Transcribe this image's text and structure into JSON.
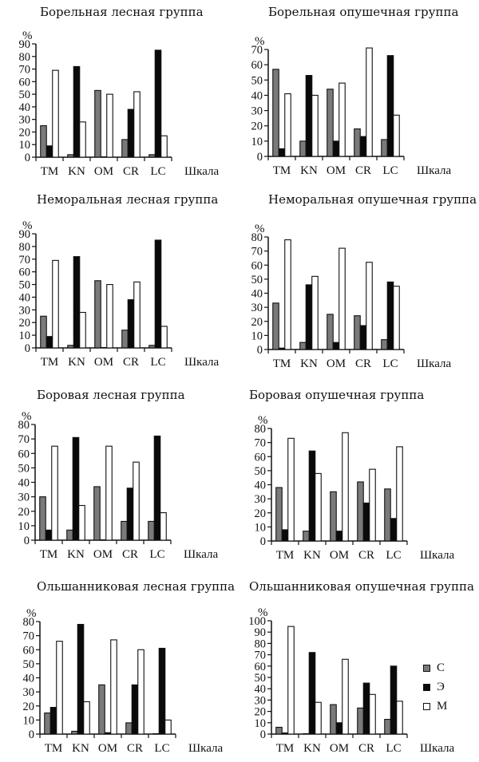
{
  "colors": {
    "С": "#7a7a7a",
    "Э": "#0a0a0a",
    "М": "#ffffff",
    "axis": "#111111"
  },
  "chart_data": [
    {
      "type": "bar",
      "title": "Борельная лесная группа",
      "ylabel": "%",
      "xlabel": "Шкала",
      "categories": [
        "TM",
        "KN",
        "OM",
        "CR",
        "LC"
      ],
      "ylim": [
        0,
        90
      ],
      "yticks": [
        0,
        10,
        20,
        30,
        40,
        50,
        60,
        70,
        80,
        90
      ],
      "series": [
        {
          "name": "С",
          "values": [
            25,
            2,
            53,
            14,
            2
          ]
        },
        {
          "name": "Э",
          "values": [
            9,
            72,
            0,
            38,
            85
          ]
        },
        {
          "name": "М",
          "values": [
            69,
            28,
            50,
            52,
            17
          ]
        }
      ]
    },
    {
      "type": "bar",
      "title": "Борельная опушечная группа",
      "ylabel": "%",
      "xlabel": "Шкала",
      "categories": [
        "TM",
        "KN",
        "OM",
        "CR",
        "LC"
      ],
      "ylim": [
        0,
        70
      ],
      "yticks": [
        0,
        10,
        20,
        30,
        40,
        50,
        60,
        70
      ],
      "series": [
        {
          "name": "С",
          "values": [
            57,
            10,
            44,
            18,
            11
          ]
        },
        {
          "name": "Э",
          "values": [
            5,
            53,
            10,
            13,
            66
          ]
        },
        {
          "name": "М",
          "values": [
            41,
            40,
            48,
            71,
            27
          ]
        }
      ]
    },
    {
      "type": "bar",
      "title": "Неморальная лесная группа",
      "ylabel": "%",
      "xlabel": "Шкала",
      "categories": [
        "TM",
        "KN",
        "OM",
        "CR",
        "LC"
      ],
      "ylim": [
        0,
        90
      ],
      "yticks": [
        0,
        10,
        20,
        30,
        40,
        50,
        60,
        70,
        80,
        90
      ],
      "series": [
        {
          "name": "С",
          "values": [
            25,
            2,
            53,
            14,
            2
          ]
        },
        {
          "name": "Э",
          "values": [
            9,
            72,
            0,
            38,
            85
          ]
        },
        {
          "name": "М",
          "values": [
            69,
            28,
            50,
            52,
            17
          ]
        }
      ]
    },
    {
      "type": "bar",
      "title": "Неморальная опушечная группа",
      "ylabel": "%",
      "xlabel": "Шкала",
      "categories": [
        "TM",
        "KN",
        "OM",
        "CR",
        "LC"
      ],
      "ylim": [
        0,
        80
      ],
      "yticks": [
        0,
        10,
        20,
        30,
        40,
        50,
        60,
        70,
        80
      ],
      "series": [
        {
          "name": "С",
          "values": [
            33,
            5,
            25,
            24,
            7
          ]
        },
        {
          "name": "Э",
          "values": [
            1,
            46,
            5,
            17,
            48
          ]
        },
        {
          "name": "М",
          "values": [
            78,
            52,
            72,
            62,
            45
          ]
        }
      ]
    },
    {
      "type": "bar",
      "title": "Боровая лесная группа",
      "ylabel": "%",
      "xlabel": "Шкала",
      "categories": [
        "TM",
        "KN",
        "OM",
        "CR",
        "LC"
      ],
      "ylim": [
        0,
        80
      ],
      "yticks": [
        0,
        10,
        20,
        30,
        40,
        50,
        60,
        70,
        80
      ],
      "series": [
        {
          "name": "С",
          "values": [
            30,
            7,
            37,
            13,
            13
          ]
        },
        {
          "name": "Э",
          "values": [
            7,
            71,
            0,
            36,
            72
          ]
        },
        {
          "name": "М",
          "values": [
            65,
            24,
            65,
            54,
            19
          ]
        }
      ]
    },
    {
      "type": "bar",
      "title": "Боровая опушечная группа",
      "ylabel": "%",
      "xlabel": "Шкала",
      "categories": [
        "TM",
        "KN",
        "OM",
        "CR",
        "LC"
      ],
      "ylim": [
        0,
        80
      ],
      "yticks": [
        0,
        10,
        20,
        30,
        40,
        50,
        60,
        70,
        80
      ],
      "series": [
        {
          "name": "С",
          "values": [
            38,
            7,
            35,
            42,
            37
          ]
        },
        {
          "name": "Э",
          "values": [
            8,
            64,
            7,
            27,
            16
          ]
        },
        {
          "name": "М",
          "values": [
            73,
            48,
            77,
            51,
            67
          ]
        }
      ]
    },
    {
      "type": "bar",
      "title": "Ольшанниковая лесная группа",
      "ylabel": "%",
      "xlabel": "Шкала",
      "categories": [
        "TM",
        "KN",
        "OM",
        "CR",
        "LC"
      ],
      "ylim": [
        0,
        80
      ],
      "yticks": [
        0,
        10,
        20,
        30,
        40,
        50,
        60,
        70,
        80
      ],
      "series": [
        {
          "name": "С",
          "values": [
            15,
            2,
            35,
            8,
            0
          ]
        },
        {
          "name": "Э",
          "values": [
            19,
            78,
            1,
            35,
            61
          ]
        },
        {
          "name": "М",
          "values": [
            66,
            23,
            67,
            60,
            10
          ]
        }
      ]
    },
    {
      "type": "bar",
      "title": "Ольшанниковая опушечная группа",
      "ylabel": "%",
      "xlabel": "Шкала",
      "categories": [
        "TM",
        "KN",
        "OM",
        "CR",
        "LC"
      ],
      "ylim": [
        0,
        100
      ],
      "yticks": [
        0,
        10,
        20,
        30,
        40,
        50,
        60,
        70,
        80,
        90,
        100
      ],
      "series": [
        {
          "name": "С",
          "values": [
            6,
            0,
            26,
            23,
            13
          ]
        },
        {
          "name": "Э",
          "values": [
            1,
            72,
            10,
            45,
            60
          ]
        },
        {
          "name": "М",
          "values": [
            95,
            28,
            66,
            35,
            29
          ]
        }
      ]
    }
  ],
  "legend": [
    {
      "name": "С"
    },
    {
      "name": "Э"
    },
    {
      "name": "М"
    }
  ]
}
